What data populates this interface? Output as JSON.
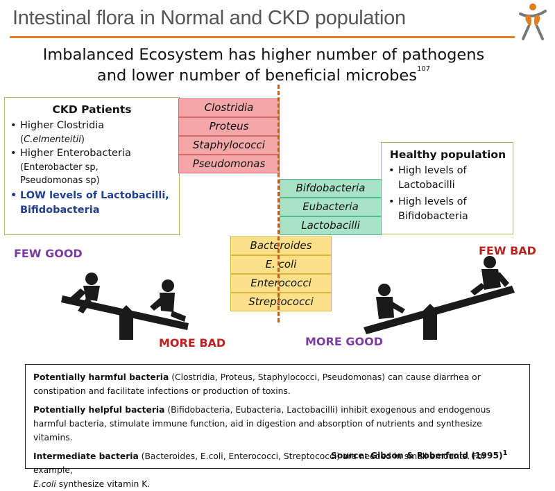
{
  "header": {
    "title": "Intestinal flora in Normal and CKD population",
    "logo_icon": "kidney-figure-logo-icon",
    "accent_color": "#e07e22"
  },
  "headline": {
    "line1": "Imbalanced Ecosystem has higher number of pathogens",
    "line2": "and lower number of beneficial microbes",
    "ref": "107"
  },
  "ckd_card": {
    "title": "CKD Patients",
    "items": [
      {
        "main": "Higher Clostridia",
        "sub_pre": "(",
        "sub_italic": "C.elmenteitii",
        "sub_post": ")"
      },
      {
        "main": "Higher Enterobacteria",
        "sub1": "(Enterobacter sp,",
        "sub2": "Pseudomonas sp)"
      },
      {
        "main1": "LOW levels of Lactobacilli,",
        "main2": "Bifidobacteria"
      }
    ],
    "highlight_color": "#1f3f8f"
  },
  "healthy_card": {
    "title": "Healthy population",
    "items": [
      {
        "line1": "High levels of",
        "line2": "Lactobacilli"
      },
      {
        "line1": "High levels of",
        "line2": "Bifidobacteria"
      }
    ]
  },
  "bacteria": {
    "harmful": [
      "Clostridia",
      "Proteus",
      "Staphylococci",
      "Pseudomonas"
    ],
    "helpful": [
      "Bifdobacteria",
      "Eubacteria",
      "Lactobacilli"
    ],
    "intermediate": [
      "Bacteroides",
      "E. coli",
      "Enterococci",
      "Streptococci"
    ]
  },
  "seesaw_labels": {
    "left_top": "FEW GOOD",
    "left_bottom": "MORE BAD",
    "right_top": "FEW BAD",
    "right_bottom_1": "MORE",
    "right_bottom_2": "GOOD"
  },
  "notes": {
    "harmful_bold": "Potentially harmful bacteria",
    "harmful_text": " (Clostridia, Proteus, Staphylococci, Pseudomonas) can cause diarrhea or constipation and facilitate infections or production of toxins.",
    "helpful_bold": "Potentially helpful bacteria",
    "helpful_text": " (Bifidobacteria, Eubacteria, Lactobacilli) inhibit exogenous and endogenous harmful bacteria, stimulate immune function, aid in digestion and absorption of nutrients and synthesize vitamins.",
    "intermediate_bold": "Intermediate bacteria",
    "intermediate_text": " (Bacteroides, E.coli, Enterococci, Streptococci) are needed in small amounts. For example,",
    "ecoli_italic": "E.coli",
    "ecoli_text": " synthesize vitamin K.",
    "source": "Source: Gibson & Roberfroid (1995)",
    "source_ref": "1"
  }
}
